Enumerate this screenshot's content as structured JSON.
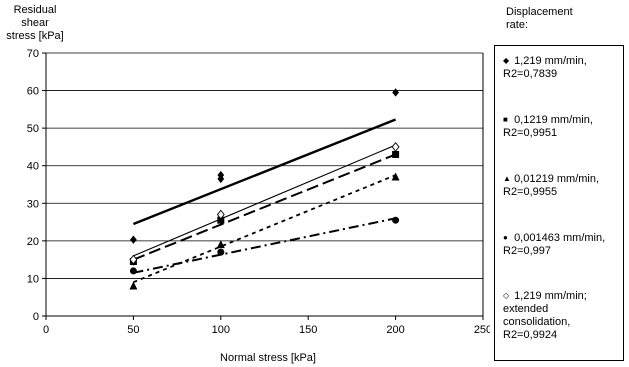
{
  "chart_data": {
    "type": "scatter",
    "title": "",
    "xlabel": "Normal stress [kPa]",
    "ylabel": "Residual shear stress  [kPa]",
    "xlim": [
      0,
      250
    ],
    "ylim": [
      0,
      70
    ],
    "xticks": [
      0,
      50,
      100,
      150,
      200,
      250
    ],
    "yticks": [
      0,
      10,
      20,
      30,
      40,
      50,
      60,
      70
    ],
    "grid": "horizontal",
    "legend_title": "Displacement rate:",
    "legend_position": "right",
    "series": [
      {
        "name": "1,219 mm/min, R2=0,7839",
        "marker": "diamond",
        "line": "thick-solid",
        "x": [
          50,
          50,
          100,
          100,
          200
        ],
        "y": [
          20.3,
          14.5,
          37.5,
          36.5,
          59.5
        ],
        "trend": [
          [
            50,
            24.5
          ],
          [
            200,
            52.3
          ]
        ]
      },
      {
        "name": "0,1219 mm/min, R2=0,9951",
        "marker": "square",
        "line": "long-dash",
        "x": [
          50,
          100,
          200
        ],
        "y": [
          14.5,
          25.5,
          43
        ],
        "trend": [
          [
            50,
            15
          ],
          [
            200,
            43
          ]
        ]
      },
      {
        "name": "0,01219 mm/min, R2=0,9955",
        "marker": "triangle",
        "line": "short-dash",
        "x": [
          50,
          100,
          200
        ],
        "y": [
          8,
          19,
          37
        ],
        "trend": [
          [
            50,
            9
          ],
          [
            200,
            37.5
          ]
        ]
      },
      {
        "name": "0,001463 mm/min, R2=0,997",
        "marker": "circle",
        "line": "dash-dot",
        "x": [
          50,
          100,
          200
        ],
        "y": [
          12,
          17,
          25.5
        ],
        "trend": [
          [
            50,
            11.5
          ],
          [
            200,
            26
          ]
        ]
      },
      {
        "name": "1,219 mm/min; extended consolidation, R2=0,9924",
        "marker": "open-diamond",
        "line": "thin-solid",
        "x": [
          50,
          100,
          200
        ],
        "y": [
          15,
          27,
          45
        ],
        "trend": [
          [
            50,
            16
          ],
          [
            200,
            45.5
          ]
        ]
      }
    ]
  },
  "labels": {
    "ylabel_line1": "Residual shear",
    "ylabel_line2": "stress  [kPa]",
    "legend_title_line1": "Displacement",
    "legend_title_line2": "rate:",
    "legend": [
      {
        "symbol": "◆",
        "text": "1,219 mm/min,\nR2=0,7839"
      },
      {
        "symbol": "■",
        "text": "0,1219 mm/min,\nR2=0,9951"
      },
      {
        "symbol": "▲",
        "text": "0,01219 mm/min,\nR2=0,9955"
      },
      {
        "symbol": "●",
        "text": "0,001463 mm/min,\nR2=0,997"
      },
      {
        "symbol": "◇",
        "text": "1,219 mm/min;\nextended\nconsolidation,\nR2=0,9924"
      }
    ]
  }
}
